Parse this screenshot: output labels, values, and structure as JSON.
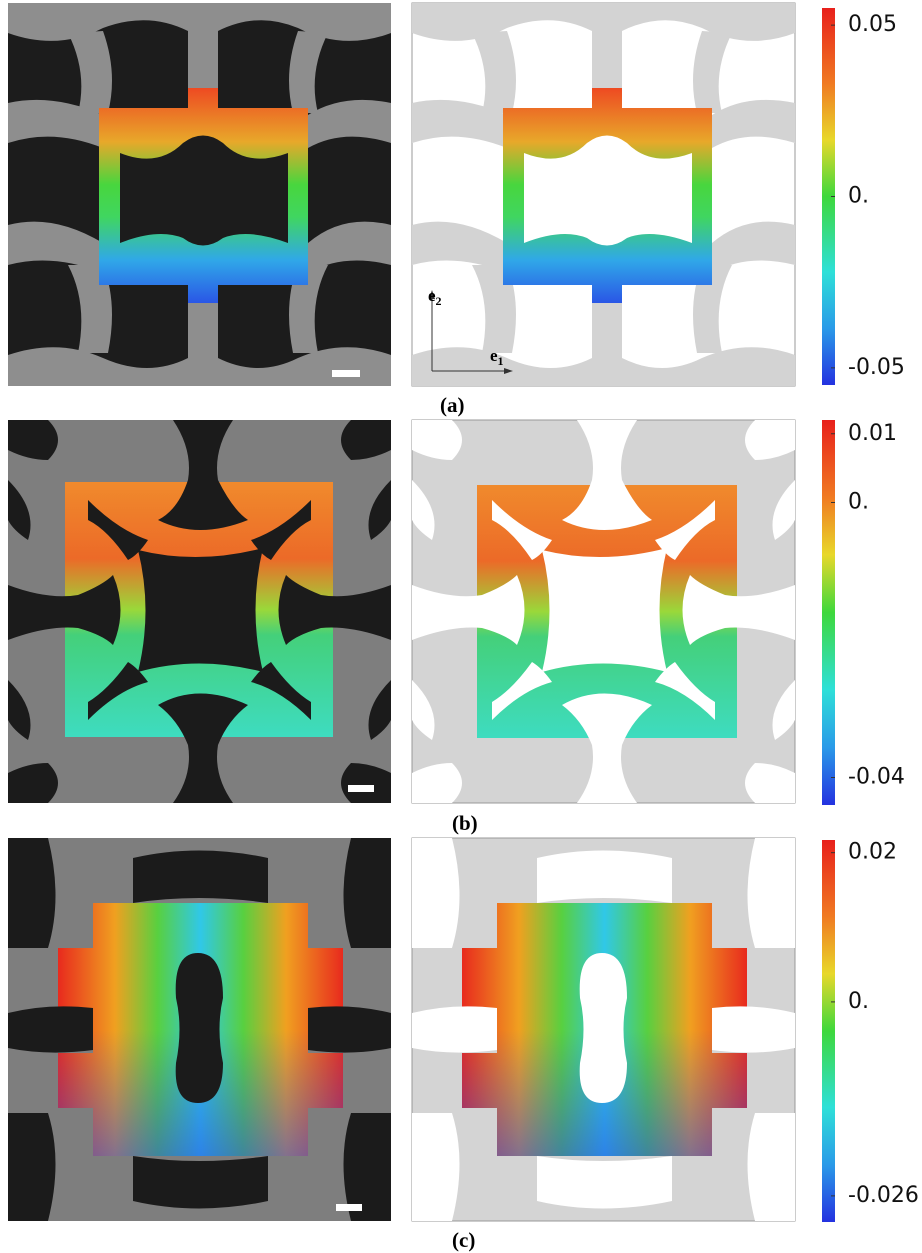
{
  "panels": [
    {
      "label": "(a)",
      "colorbar": {
        "lim": [
          -0.055,
          0.055
        ],
        "ticks": [
          0.05,
          {
            "value": 0,
            "label": "0."
          },
          -0.05
        ]
      }
    },
    {
      "label": "(b)",
      "colorbar": {
        "lim": [
          -0.044,
          0.012
        ],
        "ticks": [
          0.01,
          {
            "value": 0,
            "label": "0."
          },
          -0.04
        ]
      }
    },
    {
      "label": "(c)",
      "colorbar": {
        "lim": [
          -0.0295,
          0.0217
        ],
        "ticks": [
          0.02,
          {
            "value": 0,
            "label": "0."
          },
          -0.026
        ]
      }
    }
  ],
  "basis": [
    {
      "symbol": "e",
      "index": "2"
    },
    {
      "symbol": "e",
      "index": "1"
    }
  ]
}
